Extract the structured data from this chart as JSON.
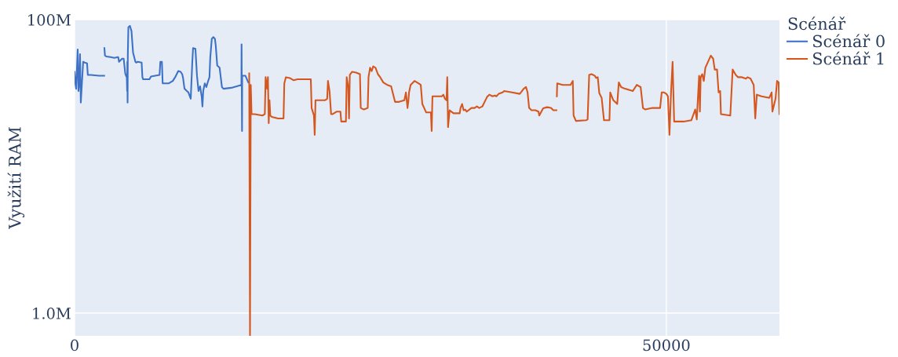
{
  "chart_data": {
    "type": "line",
    "ylabel": "Využití RAM",
    "legend_title": "Scénář",
    "legend": "top right",
    "grid": true,
    "log": "y",
    "line_style": "solid",
    "marker": "none",
    "xlim": [
      0,
      59560
    ],
    "xticks": [
      0,
      50000
    ],
    "ylim": [
      700000.0,
      100000000.0
    ],
    "yticks": [
      {
        "value": 1000000,
        "label": "1.0M"
      },
      {
        "value": 100000000,
        "label": "100M"
      }
    ],
    "series": [
      {
        "name": "Scénář 0",
        "color": "#3d72c6",
        "x": [
          0,
          66,
          132,
          264,
          329,
          395,
          461,
          527,
          725,
          856,
          1054,
          1120,
          1383,
          2042,
          2503,
          2510,
          2520,
          2569,
          2701,
          3030,
          3360,
          3689,
          3755,
          4019,
          4150,
          4282,
          4348,
          4414,
          4440,
          4460,
          4480,
          4500,
          4546,
          4677,
          4809,
          4941,
          5139,
          5205,
          5336,
          5666,
          5732,
          5797,
          6324,
          6456,
          7181,
          7247,
          7379,
          7444,
          7971,
          8301,
          8499,
          8762,
          8960,
          9091,
          9157,
          9289,
          9487,
          9618,
          9816,
          9948,
          10014,
          10211,
          10343,
          10475,
          10607,
          10738,
          10804,
          10870,
          11002,
          11134,
          11265,
          11397,
          11463,
          11595,
          11727,
          11858,
          11924,
          12056,
          12254,
          12451,
          12583,
          13242,
          13703,
          14098,
          14110,
          14150,
          14164,
          14428,
          14625,
          14691
        ],
        "values": [
          44100000.0,
          36800000.0,
          33800000.0,
          62600000.0,
          32600000.0,
          36800000.0,
          58200000.0,
          27200000.0,
          51600000.0,
          51000000.0,
          50400000.0,
          42000000.0,
          42000000.0,
          41500000.0,
          41500000.0,
          null,
          64000000.0,
          56800000.0,
          56100000.0,
          55500000.0,
          54800000.0,
          55500000.0,
          51600000.0,
          54200000.0,
          54200000.0,
          43000000.0,
          41500000.0,
          40500000.0,
          32600000.0,
          51600000.0,
          27200000.0,
          58200000.0,
          88600000.0,
          90700000.0,
          83500000.0,
          59600000.0,
          51600000.0,
          51000000.0,
          51600000.0,
          51000000.0,
          40500000.0,
          39200000.0,
          39200000.0,
          41000000.0,
          42000000.0,
          51600000.0,
          51600000.0,
          36800000.0,
          36800000.0,
          38200000.0,
          40500000.0,
          44600000.0,
          44100000.0,
          42500000.0,
          40500000.0,
          33800000.0,
          32600000.0,
          31900000.0,
          28900000.0,
          51600000.0,
          64000000.0,
          63300000.0,
          41500000.0,
          32600000.0,
          35100000.0,
          30000000.0,
          25600000.0,
          32600000.0,
          36800000.0,
          34700000.0,
          37700000.0,
          40500000.0,
          54800000.0,
          74000000.0,
          76000000.0,
          74000000.0,
          67200000.0,
          48600000.0,
          47000000.0,
          34700000.0,
          33800000.0,
          34300000.0,
          35100000.0,
          35900000.0,
          67900000.0,
          17400000.0,
          41500000.0,
          41500000.0,
          38200000.0,
          37300000.0
        ]
      },
      {
        "name": "Scénář 1",
        "color": "#d4571f",
        "x": [
          14757,
          14823,
          14889,
          14955,
          15218,
          15877,
          16075,
          16141,
          16272,
          16338,
          16404,
          16470,
          16536,
          16668,
          17195,
          17656,
          17722,
          17853,
          18183,
          18512,
          18842,
          19171,
          19501,
          19962,
          20028,
          20225,
          20291,
          20357,
          20489,
          21148,
          21345,
          21411,
          21543,
          21675,
          21806,
          22136,
          22465,
          22531,
          22795,
          22927,
          22993,
          23124,
          23190,
          23256,
          23454,
          23783,
          24113,
          24179,
          24442,
          24771,
          24837,
          24969,
          25101,
          25232,
          25430,
          25628,
          25825,
          26088,
          26418,
          26747,
          27077,
          27406,
          27867,
          27999,
          28131,
          28197,
          28262,
          28394,
          28724,
          29053,
          29251,
          29382,
          29712,
          30107,
          30173,
          30239,
          30371,
          31029,
          31161,
          31293,
          31425,
          31491,
          31557,
          31688,
          32018,
          32347,
          32545,
          32611,
          32743,
          32874,
          33006,
          33138,
          33533,
          33797,
          33994,
          34192,
          34455,
          34851,
          35048,
          35312,
          35510,
          35641,
          35839,
          36168,
          36300,
          36959,
          37618,
          37947,
          38145,
          38277,
          38408,
          38606,
          38935,
          39199,
          39265,
          39594,
          39924,
          40253,
          40451,
          40714,
          40730,
          40750,
          40780,
          41241,
          41900,
          42098,
          42164,
          42361,
          43217,
          43349,
          43481,
          43678,
          43942,
          44074,
          44206,
          44338,
          44535,
          44733,
          45194,
          45260,
          45524,
          45852,
          45984,
          46182,
          46511,
          47170,
          47499,
          47829,
          48026,
          48224,
          48817,
          49476,
          49608,
          49806,
          50003,
          50135,
          50267,
          50398,
          50530,
          50662,
          51453,
          52111,
          52441,
          52573,
          52770,
          52836,
          52902,
          53034,
          53166,
          53297,
          53758,
          53956,
          54088,
          54286,
          54417,
          54549,
          54615,
          55406,
          55603,
          55867,
          56065,
          56394,
          56723,
          56855,
          57119,
          57382,
          57514,
          57646,
          58041,
          58700,
          58898,
          58964,
          59227,
          59359,
          59491,
          59557
        ],
        "values": [
          43000000.0,
          700000.0,
          35900000.0,
          22700000.0,
          22700000.0,
          22200000.0,
          22700000.0,
          40500000.0,
          33800000.0,
          40500000.0,
          19700000.0,
          28200000.0,
          22200000.0,
          21700000.0,
          21200000.0,
          21200000.0,
          36800000.0,
          40500000.0,
          40000000.0,
          38600000.0,
          39200000.0,
          39200000.0,
          39200000.0,
          39200000.0,
          25000000.0,
          22200000.0,
          16400000.0,
          28200000.0,
          28200000.0,
          28200000.0,
          28900000.0,
          38200000.0,
          32600000.0,
          22700000.0,
          22700000.0,
          23600000.0,
          23600000.0,
          20200000.0,
          20200000.0,
          20200000.0,
          40500000.0,
          34700000.0,
          21200000.0,
          42000000.0,
          44100000.0,
          43600000.0,
          42500000.0,
          25000000.0,
          24400000.0,
          25000000.0,
          40500000.0,
          47000000.0,
          44600000.0,
          48000000.0,
          47000000.0,
          42500000.0,
          40500000.0,
          37300000.0,
          35900000.0,
          35100000.0,
          27500000.0,
          27500000.0,
          28200000.0,
          31900000.0,
          25000000.0,
          27500000.0,
          31900000.0,
          35900000.0,
          38200000.0,
          36800000.0,
          35900000.0,
          26600000.0,
          23300000.0,
          23300000.0,
          17400000.0,
          30000000.0,
          30000000.0,
          30000000.0,
          30800000.0,
          28900000.0,
          28200000.0,
          40500000.0,
          18500000.0,
          24100000.0,
          23000000.0,
          23000000.0,
          23000000.0,
          25000000.0,
          26600000.0,
          24100000.0,
          24400000.0,
          23600000.0,
          25000000.0,
          25000000.0,
          25600000.0,
          25000000.0,
          25600000.0,
          29700000.0,
          30800000.0,
          30000000.0,
          30400000.0,
          30000000.0,
          31200000.0,
          31900000.0,
          32600000.0,
          31900000.0,
          31200000.0,
          33800000.0,
          34700000.0,
          31900000.0,
          25000000.0,
          24100000.0,
          24100000.0,
          23600000.0,
          22200000.0,
          24900000.0,
          25300000.0,
          25000000.0,
          24100000.0,
          24100000.0,
          null,
          30000000.0,
          36800000.0,
          35900000.0,
          35900000.0,
          38200000.0,
          22200000.0,
          20400000.0,
          20600000.0,
          20900000.0,
          42000000.0,
          42500000.0,
          41500000.0,
          40000000.0,
          40500000.0,
          31500000.0,
          29300000.0,
          20600000.0,
          20600000.0,
          31900000.0,
          28200000.0,
          26600000.0,
          37300000.0,
          34700000.0,
          33800000.0,
          32600000.0,
          35900000.0,
          34700000.0,
          25000000.0,
          24400000.0,
          25000000.0,
          25000000.0,
          31900000.0,
          31900000.0,
          31200000.0,
          30000000.0,
          16400000.0,
          31900000.0,
          51600000.0,
          20200000.0,
          20200000.0,
          20600000.0,
          24400000.0,
          20900000.0,
          41500000.0,
          23600000.0,
          40500000.0,
          42500000.0,
          38200000.0,
          47000000.0,
          56800000.0,
          54200000.0,
          45700000.0,
          45700000.0,
          31900000.0,
          32600000.0,
          22700000.0,
          22200000.0,
          45700000.0,
          42000000.0,
          40500000.0,
          40500000.0,
          39600000.0,
          40500000.0,
          39600000.0,
          35900000.0,
          21200000.0,
          30800000.0,
          30000000.0,
          29300000.0,
          31900000.0,
          23600000.0,
          28900000.0,
          38200000.0,
          37300000.0,
          22700000.0
        ]
      }
    ]
  }
}
